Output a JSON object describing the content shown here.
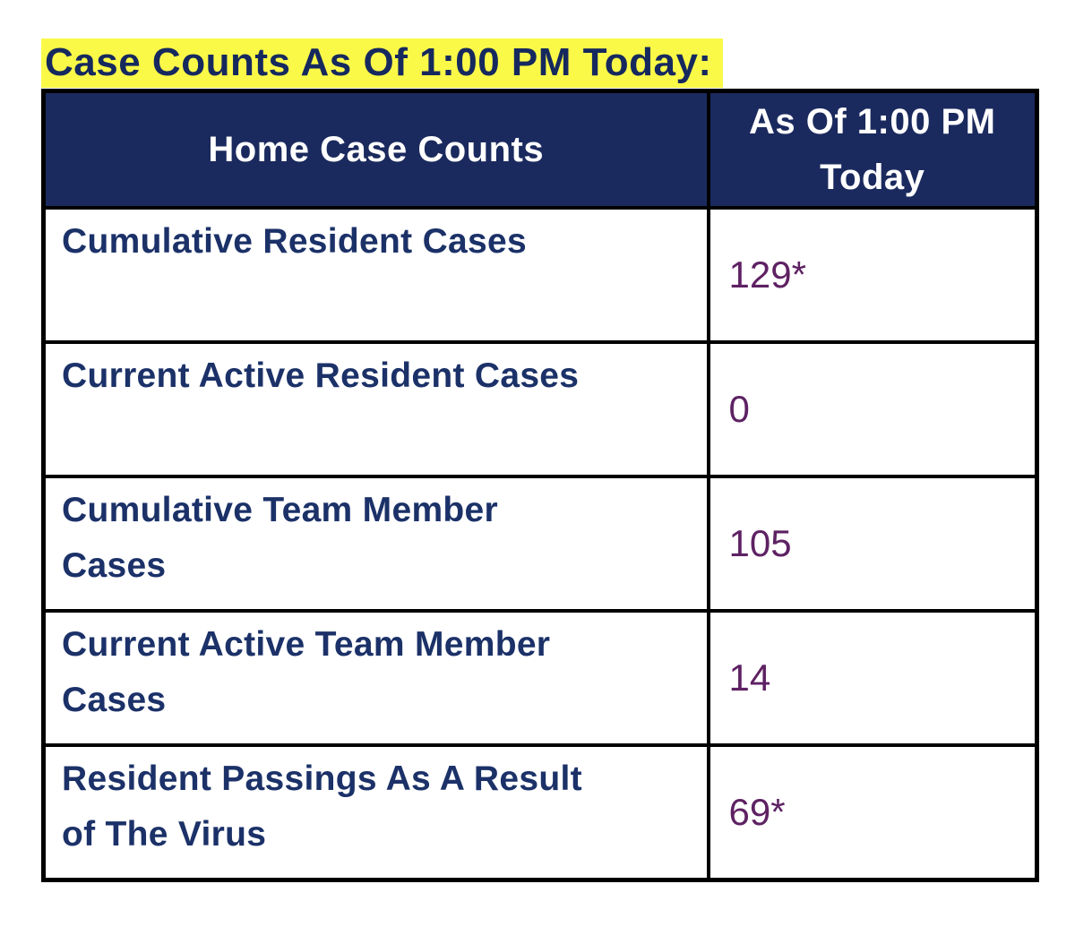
{
  "title": {
    "text": "Case Counts As Of 1:00 PM Today:"
  },
  "table": {
    "header": {
      "col_label": "Home Case Counts",
      "col_value": "As Of 1:00 PM\nToday"
    },
    "rows": [
      {
        "label": "Cumulative Resident Cases",
        "value": "129*"
      },
      {
        "label": "Current Active Resident Cases",
        "value": "0"
      },
      {
        "label": "Cumulative Team Member\nCases",
        "value": "105"
      },
      {
        "label": "Current Active Team Member\nCases",
        "value": "14"
      },
      {
        "label": "Resident Passings As A Result\nof The Virus",
        "value": "69*"
      }
    ]
  },
  "colors": {
    "title_highlight_yellow": "#FBF948",
    "title_text_navy": "#16295E",
    "header_bg_navy": "#1B2A5E",
    "header_text_white": "#FFFFFF",
    "label_navy": "#1B3168",
    "value_plum": "#5E2163",
    "border_black": "#000000",
    "page_background": "#FFFFFF"
  }
}
